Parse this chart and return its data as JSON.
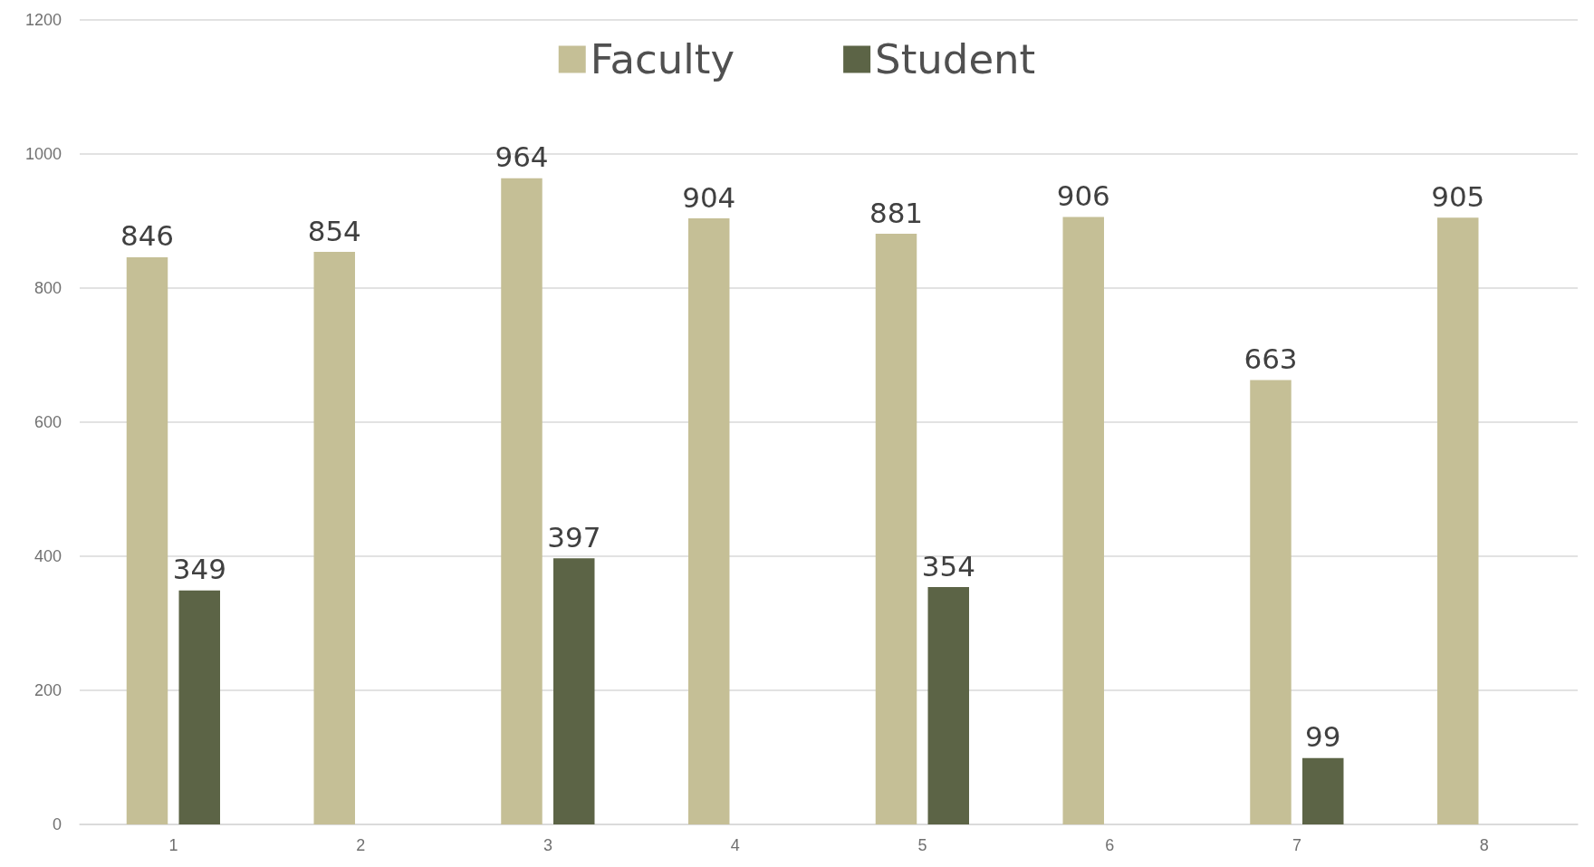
{
  "chart_data": {
    "type": "bar",
    "categories": [
      "1",
      "2",
      "3",
      "4",
      "5",
      "6",
      "7",
      "8"
    ],
    "series": [
      {
        "name": "Faculty",
        "color": "#c5bf96",
        "values": [
          846,
          854,
          964,
          904,
          881,
          906,
          663,
          905
        ]
      },
      {
        "name": "Student",
        "color": "#5c6446",
        "values": [
          349,
          null,
          397,
          null,
          354,
          null,
          99,
          null
        ]
      }
    ],
    "ylim": [
      0,
      1200
    ],
    "yticks": [
      0,
      200,
      400,
      600,
      800,
      1000,
      1200
    ],
    "grid": "y",
    "legend": "top",
    "data_labels": true
  }
}
